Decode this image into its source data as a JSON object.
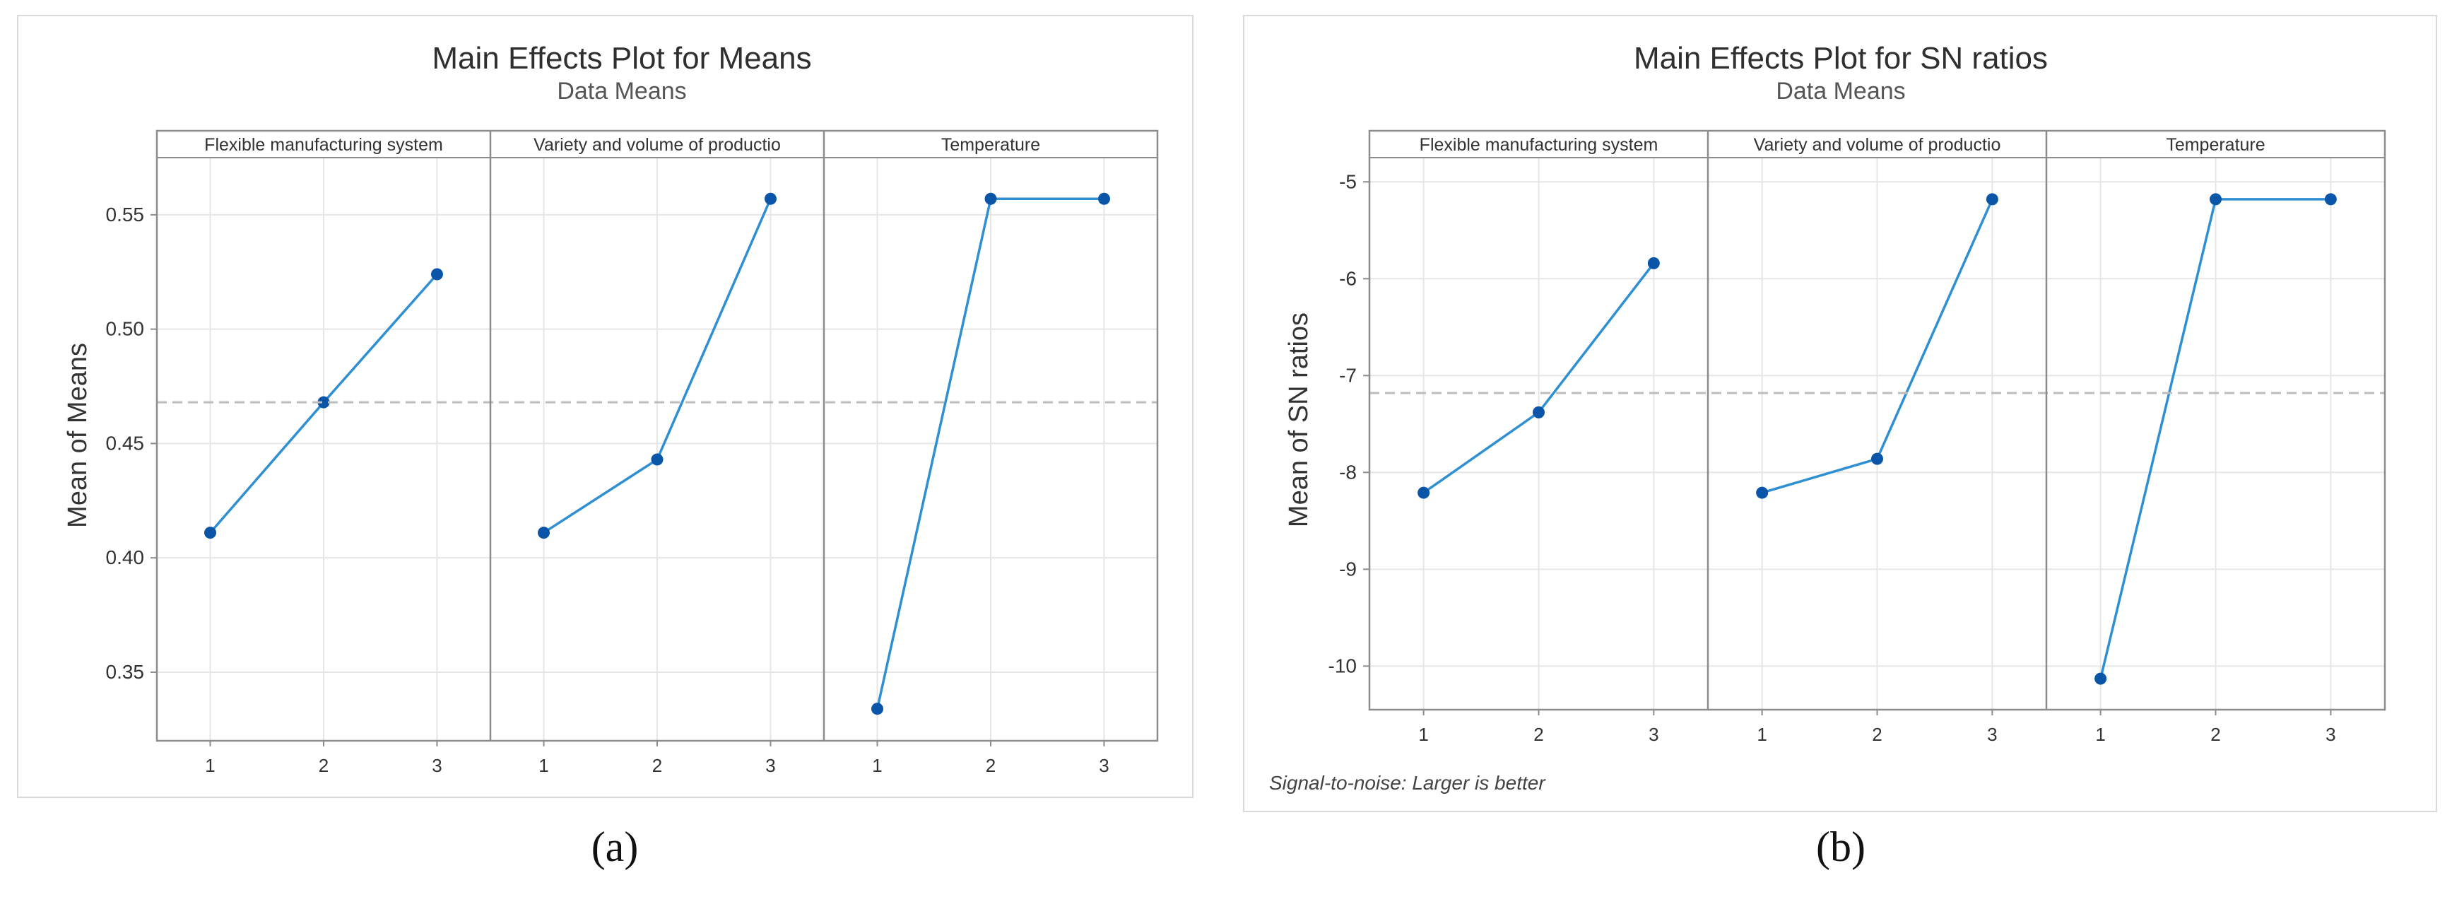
{
  "chart_data": [
    {
      "type": "line",
      "title": "Main Effects Plot for Means",
      "subtitle": "Data Means",
      "ylabel": "Mean of Means",
      "ylim": [
        0.32,
        0.575
      ],
      "yticks": [
        0.35,
        0.4,
        0.45,
        0.5,
        0.55
      ],
      "ytick_labels": [
        "0.35",
        "0.40",
        "0.45",
        "0.50",
        "0.55"
      ],
      "reference_line": 0.468,
      "caption": "(a)",
      "footnote": "",
      "panels": [
        {
          "name": "Flexible manufacturing system",
          "x": [
            "1",
            "2",
            "3"
          ],
          "values": [
            0.411,
            0.468,
            0.524
          ]
        },
        {
          "name": "Variety and volume of productio",
          "x": [
            "1",
            "2",
            "3"
          ],
          "values": [
            0.411,
            0.443,
            0.557
          ]
        },
        {
          "name": "Temperature",
          "x": [
            "1",
            "2",
            "3"
          ],
          "values": [
            0.334,
            0.557,
            0.557
          ]
        }
      ],
      "grid": true,
      "colors": {
        "line": "#2e8fd3",
        "marker": "#0a55a8",
        "reference": "#bdbdbd",
        "grid": "#e6e6e6",
        "frame": "#8c8c8c"
      }
    },
    {
      "type": "line",
      "title": "Main Effects Plot for SN ratios",
      "subtitle": "Data Means",
      "ylabel": "Mean of SN ratios",
      "ylim": [
        -10.45,
        -4.75
      ],
      "yticks": [
        -10,
        -9,
        -8,
        -7,
        -6,
        -5
      ],
      "ytick_labels": [
        "-10",
        "-9",
        "-8",
        "-7",
        "-6",
        "-5"
      ],
      "reference_line": -7.18,
      "caption": "(b)",
      "footnote": "Signal-to-noise: Larger is better",
      "panels": [
        {
          "name": "Flexible manufacturing system",
          "x": [
            "1",
            "2",
            "3"
          ],
          "values": [
            -8.21,
            -7.38,
            -5.84
          ]
        },
        {
          "name": "Variety and volume of productio",
          "x": [
            "1",
            "2",
            "3"
          ],
          "values": [
            -8.21,
            -7.86,
            -5.18
          ]
        },
        {
          "name": "Temperature",
          "x": [
            "1",
            "2",
            "3"
          ],
          "values": [
            -10.13,
            -5.18,
            -5.18
          ]
        }
      ],
      "grid": true,
      "colors": {
        "line": "#2e8fd3",
        "marker": "#0a55a8",
        "reference": "#bdbdbd",
        "grid": "#e6e6e6",
        "frame": "#8c8c8c"
      }
    }
  ]
}
